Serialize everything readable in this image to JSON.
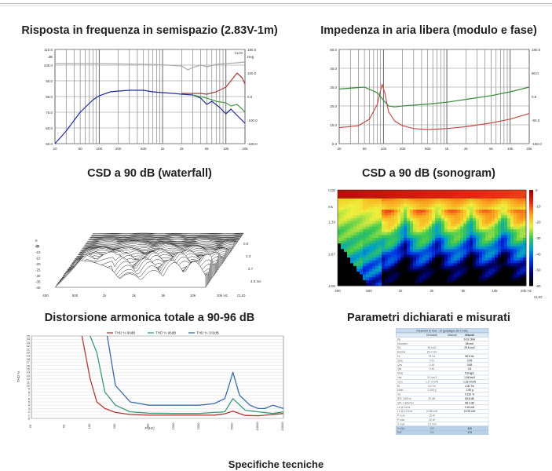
{
  "sections": {
    "freq_title": "Risposta in frequenza in semispazio (2.83V-1m)",
    "imp_title": "Impedenza in aria libera (modulo e fase)",
    "waterfall_title": "CSD a 90 dB (waterfall)",
    "sonogram_title": "CSD a 90 dB (sonogram)",
    "thd_title": "Distorsione armonica totale a 90-96 dB",
    "params_title": "Parametri dichiarati e misurati",
    "footer": "Specifiche tecniche"
  },
  "chart_data": [
    {
      "id": "freq",
      "type": "line",
      "brand": "CLIO",
      "ylabel": "dB",
      "y2label": "Deg",
      "xscale": "log",
      "xlim": [
        20,
        20000
      ],
      "ylim": [
        50,
        110
      ],
      "y2lim": [
        -180,
        180
      ],
      "yticks": [
        "110.0",
        "100.0",
        "90.0",
        "80.0",
        "70.0",
        "60.0",
        "50.0"
      ],
      "y2ticks": [
        "180.0",
        "100.0",
        "0.0",
        "-100.0",
        "-180.0"
      ],
      "xticks": [
        "20",
        "50",
        "100",
        "200",
        "500",
        "1k",
        "2k",
        "5k",
        "10k",
        "20k"
      ],
      "series": [
        {
          "color": "#aaaaaa",
          "x": [
            20,
            50,
            100,
            200,
            500,
            1000,
            2000,
            2500,
            3000,
            4000,
            5000,
            7000,
            10000,
            15000,
            20000
          ],
          "y": [
            101,
            101,
            101,
            100.8,
            100.6,
            100.2,
            99.5,
            97,
            98.5,
            100,
            99,
            100.5,
            101,
            101.5,
            102
          ]
        },
        {
          "color": "#1f2c9a",
          "x": [
            20,
            30,
            50,
            80,
            100,
            150,
            200,
            300,
            500,
            700,
            1000,
            1500,
            2000,
            3000,
            4000,
            5000,
            6000,
            8000,
            10000,
            12000,
            15000,
            20000
          ],
          "y": [
            50,
            58,
            70,
            78,
            80.5,
            83,
            83.5,
            84,
            84,
            83,
            82.5,
            82,
            81.5,
            81,
            79,
            75,
            77,
            73,
            69,
            72,
            68,
            63
          ]
        },
        {
          "color": "#a23b3b",
          "x": [
            2000,
            3000,
            4000,
            5000,
            7000,
            10000,
            12000,
            15000,
            18000,
            20000
          ],
          "y": [
            82,
            82,
            82,
            81.5,
            83,
            86,
            90,
            95,
            92,
            88
          ]
        },
        {
          "color": "#4a9a4a",
          "x": [
            3000,
            5000,
            7000,
            10000,
            12000,
            15000,
            18000,
            20000
          ],
          "y": [
            81,
            79,
            77,
            76,
            74,
            75,
            72,
            70
          ]
        }
      ]
    },
    {
      "id": "imp",
      "type": "line",
      "xscale": "log",
      "xlim": [
        20,
        20000
      ],
      "ylim": [
        0,
        50
      ],
      "y2lim": [
        -180,
        180
      ],
      "yticks": [
        "50.0",
        "40.0",
        "30.0",
        "20.0",
        "10.0",
        "0.0"
      ],
      "y2ticks": [
        "180.0",
        "90.0",
        "0.0",
        "-90.0",
        "-180.0"
      ],
      "xticks": [
        "20",
        "50",
        "100",
        "200",
        "500",
        "1k",
        "2k",
        "5k",
        "10k",
        "20k"
      ],
      "series": [
        {
          "color": "#c05050",
          "x": [
            20,
            40,
            60,
            80,
            95,
            105,
            120,
            150,
            200,
            300,
            500,
            1000,
            2000,
            5000,
            10000,
            20000
          ],
          "y": [
            8.5,
            9.5,
            13,
            21,
            31.5,
            27,
            17,
            12,
            9.5,
            8,
            7.5,
            8,
            9,
            11,
            13,
            16
          ]
        },
        {
          "color": "#3a8a3a",
          "x": [
            20,
            50,
            80,
            100,
            120,
            150,
            200,
            500,
            1000,
            2000,
            5000,
            10000,
            20000
          ],
          "y": [
            29,
            30,
            27,
            23,
            20,
            19.5,
            20,
            21,
            22,
            23.5,
            25.5,
            27.5,
            30
          ]
        }
      ]
    },
    {
      "id": "waterfall",
      "type": "area",
      "yticks": [
        "0",
        "-5",
        "-10",
        "-15",
        "-20",
        "-25",
        "-30",
        "-35",
        "-40"
      ],
      "ylabel": "dB",
      "xticks": [
        "400",
        "500",
        "1k",
        "2k",
        "5k",
        "10k",
        "20k Hz"
      ],
      "zticks": [
        "0.0",
        "1.3",
        "2.7",
        "4.0 ms"
      ],
      "brand": "CLIO"
    },
    {
      "id": "sonogram",
      "type": "heatmap",
      "yticks": [
        "0.00",
        "1.33",
        "2.67",
        "4.00"
      ],
      "ylabel": "ms",
      "xticks": [
        "400",
        "500",
        "1k",
        "2k",
        "5k",
        "10k",
        "20k Hz"
      ],
      "colorbar": [
        "0",
        "-10",
        "-20",
        "-30",
        "-40",
        "-50",
        "-60"
      ],
      "brand": "CLIO"
    },
    {
      "id": "thd",
      "type": "line",
      "ylabel": "THD %",
      "xlabel": "F [Hz]",
      "xscale": "log",
      "xlim": [
        20,
        20000
      ],
      "ylim": [
        0,
        25
      ],
      "xticks": [
        "20",
        "50",
        "100",
        "200",
        "500",
        "1000",
        "2000",
        "5000",
        "10000",
        "20000"
      ],
      "legend": [
        "THD % 90dB",
        "THD % 96dB",
        "THD % 102dB"
      ],
      "series": [
        {
          "name": "THD % 90dB",
          "color": "#b43838",
          "x": [
            80,
            100,
            120,
            150,
            200,
            300,
            500,
            1000,
            2000,
            3000,
            4000,
            5000,
            7000,
            10000,
            15000,
            20000
          ],
          "y": [
            25,
            12,
            5,
            3,
            1.8,
            1.2,
            1,
            1,
            1,
            1,
            1.4,
            2.2,
            0.9,
            0.8,
            1.2,
            1.5
          ]
        },
        {
          "name": "THD % 96dB",
          "color": "#3c9a78",
          "x": [
            100,
            120,
            150,
            200,
            300,
            500,
            1000,
            2000,
            3000,
            4000,
            5000,
            7000,
            10000,
            15000,
            20000
          ],
          "y": [
            25,
            20,
            8,
            4,
            2,
            1.6,
            1.5,
            1.5,
            1.8,
            2,
            6,
            2.5,
            2,
            1.5,
            2
          ]
        },
        {
          "name": "THD % 102dB",
          "color": "#3b6aa8",
          "x": [
            160,
            200,
            300,
            500,
            1000,
            2000,
            3000,
            4000,
            4500,
            5000,
            6000,
            8000,
            10000,
            12000,
            15000,
            20000
          ],
          "y": [
            25,
            10,
            5,
            4,
            4,
            4,
            4.5,
            6,
            10,
            14,
            7,
            4,
            3,
            3,
            4,
            3
          ]
        }
      ]
    },
    {
      "id": "params",
      "type": "table",
      "caption": "Parametri di T&S - 10 (guadagno 83.72 dB)",
      "columns": [
        "",
        "Dichiarati",
        "Misurati",
        "Misurati"
      ],
      "rows": [
        [
          "Re",
          "",
          "",
          "6.03 Ohm"
        ],
        [
          "Diametro",
          "",
          "",
          "85 mm"
        ],
        [
          "Sd",
          "54 cm2",
          "",
          "29.8 cm2"
        ],
        [
          "Bobina",
          "19.4 mm",
          "",
          ""
        ],
        [
          "Fs",
          "75 Hz",
          "",
          "98.5 Hz"
        ],
        [
          "Qms",
          "2.61",
          "",
          "3.95"
        ],
        [
          "Qes",
          "0.48",
          "",
          "0.65"
        ],
        [
          "Qts",
          "0.40",
          "",
          "0.5"
        ],
        [
          "Mms",
          "",
          "",
          "5.6 kg/s"
        ],
        [
          "Vas",
          "3.1 dm3",
          "",
          "1.56 dm3"
        ],
        [
          "Cms",
          "1.17 mm/N",
          "",
          "1.18 mm/N"
        ],
        [
          "Bl",
          "3.6 Tm",
          "",
          "4.00 Tm"
        ],
        [
          "Mmd",
          "2.400 g",
          "",
          "1.95 g"
        ],
        [
          "Xd",
          "",
          "",
          "0.152 %"
        ],
        [
          "SPL 1W/1m",
          "87 dB",
          "",
          "83.8 dB"
        ],
        [
          "SPL 2.83V/1m",
          "",
          "",
          "86.4 dB"
        ],
        [
          "Le @ 1kHz",
          "",
          "",
          "0.16 mH"
        ],
        [
          "Le @ 10 kHz",
          "0.038 mH",
          "",
          "0.075 mH"
        ],
        [
          "P nom",
          "15 W",
          "",
          ""
        ],
        [
          "P max",
          "30 W",
          "",
          ""
        ],
        [
          "X max",
          "1.6 mm",
          "",
          ""
        ],
        [
          "Fc/Qtc",
          "100",
          "",
          "110"
        ],
        [
          "RdF",
          "100",
          "",
          "174"
        ]
      ]
    }
  ]
}
